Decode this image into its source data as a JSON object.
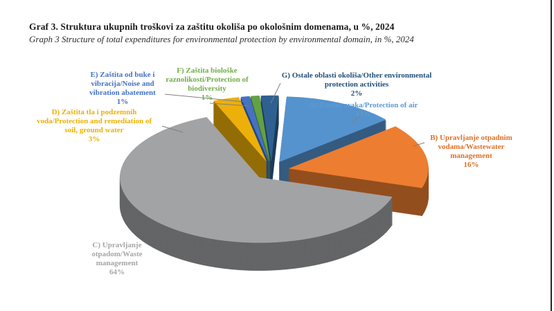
{
  "header": {
    "title": "Graf 3. Struktura ukupnih troškovi za zaštitu okoliša po okološnim domenama, u %, 2024",
    "subtitle": "Graph 3 Structure of total expenditures for environmental protection by environmental domain, in %, 2024"
  },
  "chart_data": {
    "type": "pie",
    "style": "3d-exploded",
    "title": "Graf 3. Struktura ukupnih troškovi za zaštitu okoliša po okološnim domenama, u %, 2024",
    "subtitle": "Graph 3 Structure of total expenditures for environmental protection by environmental domain, in %, 2024",
    "unit": "%",
    "year": "2024",
    "legend_position": "none",
    "slices": [
      {
        "key": "A",
        "category_hr": "Zaštita zraka",
        "category_en": "Protection of air",
        "value": 13,
        "color": "#5593CE",
        "label_color": "#5B9BD5",
        "label_lines": [
          "A) Zaštita zraka/Protection of air",
          "13%"
        ]
      },
      {
        "key": "B",
        "category_hr": "Upravljanje otpadnim vodama",
        "category_en": "Wastewater management",
        "value": 16,
        "color": "#ED7D31",
        "label_color": "#E06F28",
        "label_lines": [
          "B) Upravljanje otpadnim",
          "vodama/Wastewater",
          "management",
          "16%"
        ]
      },
      {
        "key": "C",
        "category_hr": "Upravljanje otpadom",
        "category_en": "Waste management",
        "value": 64,
        "color": "#A2A3A5",
        "label_color": "#A6A6A6",
        "label_lines": [
          "C) Upravljanje",
          "otpadom/Waste",
          "management",
          "64%"
        ]
      },
      {
        "key": "D",
        "category_hr": "Zaštita tla i podzemnih voda",
        "category_en": "Protection and remediation of soil, ground water",
        "value": 3,
        "color": "#EDAF0A",
        "label_color": "#EDB000",
        "label_lines": [
          "D) Zaštita tla i podzemnih",
          "voda/Protection and remediation of",
          "soil, ground water",
          "3%"
        ]
      },
      {
        "key": "E",
        "category_hr": "Zaštita od buke i vibracija",
        "category_en": "Noise and vibration abatement",
        "value": 1,
        "color": "#4472C4",
        "label_color": "#4472C4",
        "label_lines": [
          "E) Zaštita od buke i",
          "vibracija/Noise and",
          "vibration abatement",
          "1%"
        ]
      },
      {
        "key": "F",
        "category_hr": "Zaštita biološke raznolikosti",
        "category_en": "Protection of biodiversity",
        "value": 1,
        "color": "#63A144",
        "label_color": "#70AD47",
        "label_lines": [
          "F) Zaštita biološke",
          "raznolikosti/Protection of",
          "biodiversity",
          "1%"
        ]
      },
      {
        "key": "G",
        "category_hr": "Ostale oblasti okoliša",
        "category_en": "Other environmental protection activities",
        "value": 2,
        "color": "#2E6191",
        "label_color": "#1F4E79",
        "label_lines": [
          "G) Ostale oblasti okoliša/Other environmental",
          "protection activities",
          "2%"
        ]
      }
    ]
  }
}
